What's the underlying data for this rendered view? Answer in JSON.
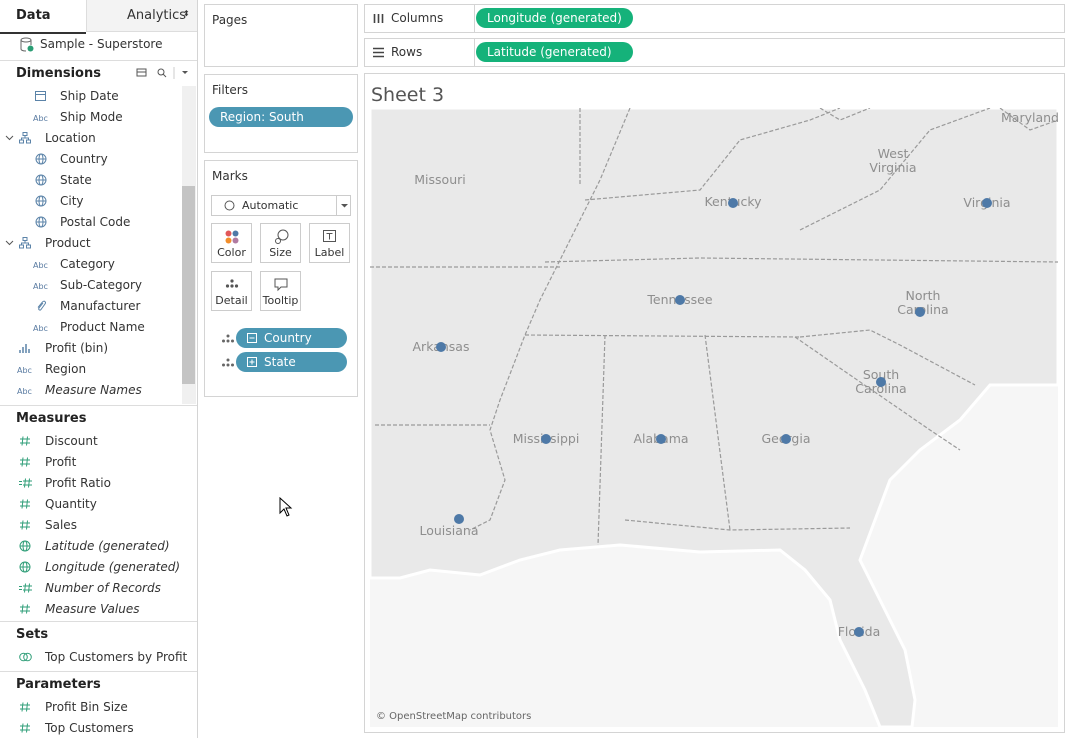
{
  "data_pane": {
    "tabs": [
      "Data",
      "Analytics"
    ],
    "datasource": "Sample - Superstore",
    "dimensions": {
      "title": "Dimensions",
      "fields": [
        {
          "name": "Ship Date"
        },
        {
          "name": "Ship Mode",
          "icon": "Abc"
        },
        {
          "name": "Location"
        },
        {
          "name": "Country"
        },
        {
          "name": "State"
        },
        {
          "name": "City"
        },
        {
          "name": "Postal Code"
        },
        {
          "name": "Product"
        },
        {
          "name": "Category",
          "icon": "Abc"
        },
        {
          "name": "Sub-Category",
          "icon": "Abc"
        },
        {
          "name": "Manufacturer"
        },
        {
          "name": "Product Name",
          "icon": "Abc"
        },
        {
          "name": "Profit (bin)"
        },
        {
          "name": "Region",
          "icon": "Abc"
        },
        {
          "name": "Measure Names",
          "icon": "Abc"
        }
      ]
    },
    "measures": {
      "title": "Measures",
      "fields": [
        {
          "name": "Discount"
        },
        {
          "name": "Profit"
        },
        {
          "name": "Profit Ratio"
        },
        {
          "name": "Quantity"
        },
        {
          "name": "Sales"
        },
        {
          "name": "Latitude (generated)"
        },
        {
          "name": "Longitude (generated)"
        },
        {
          "name": "Number of Records"
        },
        {
          "name": "Measure Values"
        }
      ]
    },
    "sets": {
      "title": "Sets",
      "fields": [
        {
          "name": "Top Customers by Profit"
        }
      ]
    },
    "parameters": {
      "title": "Parameters",
      "fields": [
        {
          "name": "Profit Bin Size"
        },
        {
          "name": "Top Customers"
        }
      ]
    }
  },
  "pages": {
    "title": "Pages"
  },
  "filters": {
    "title": "Filters",
    "pills": [
      "Region: South"
    ]
  },
  "marks": {
    "title": "Marks",
    "mark_type": "Automatic",
    "buttons": [
      "Color",
      "Size",
      "Label",
      "Detail",
      "Tooltip"
    ],
    "pills": [
      "Country",
      "State"
    ]
  },
  "columns": {
    "title": "Columns",
    "pills": [
      "Longitude (generated)"
    ]
  },
  "rows": {
    "title": "Rows",
    "pills": [
      "Latitude (generated)"
    ]
  },
  "sheet": {
    "title": "Sheet 3",
    "map_labels": [
      "Missouri",
      "Kentucky",
      "West Virginia",
      "Virginia",
      "Maryland",
      "Tennessee",
      "North Carolina",
      "Arkansas",
      "South Carolina",
      "Mississippi",
      "Alabama",
      "Georgia",
      "Louisiana",
      "Florida"
    ],
    "attribution": "© OpenStreetMap contributors"
  }
}
